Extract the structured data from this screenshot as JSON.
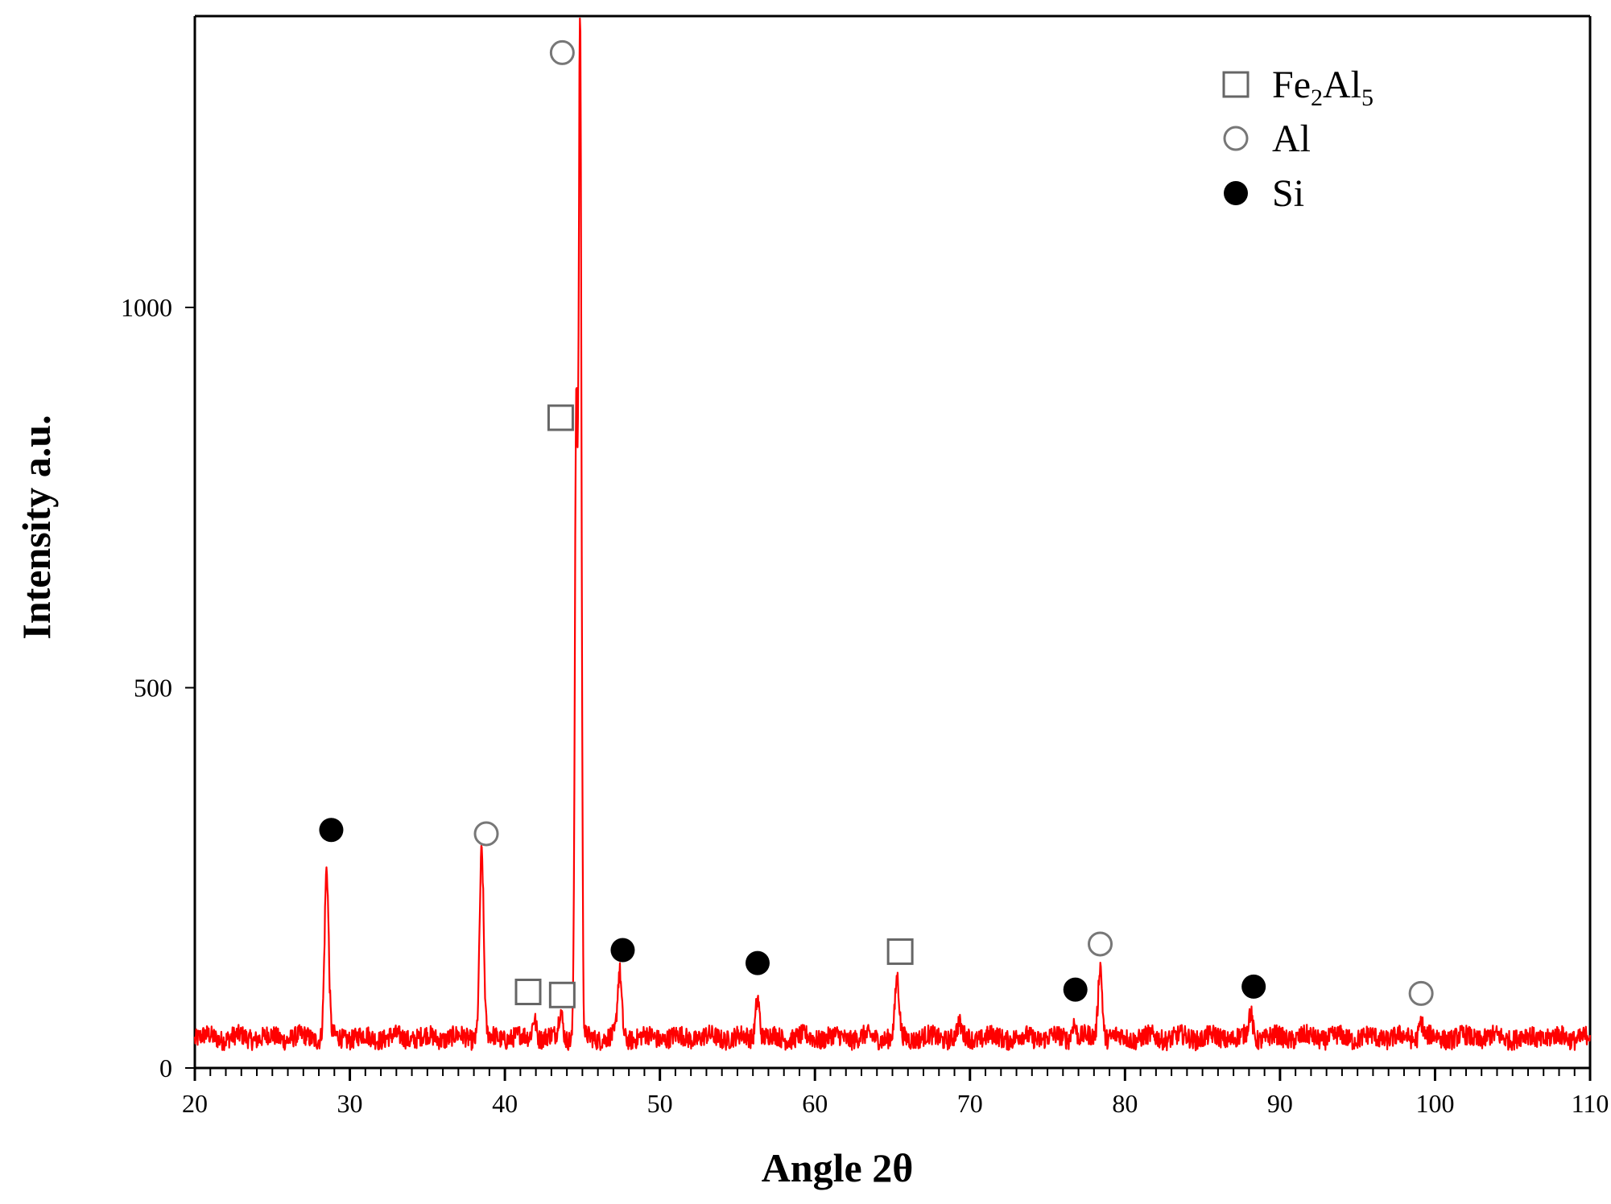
{
  "chart_data": {
    "type": "line",
    "title": "",
    "xlabel": "Angle 2θ",
    "ylabel": "Intensity a.u.",
    "xlim": [
      20,
      110
    ],
    "ylim": [
      0,
      1380
    ],
    "x_ticks": [
      20,
      30,
      40,
      50,
      60,
      70,
      80,
      90,
      100,
      110
    ],
    "y_ticks": [
      0,
      500,
      1000
    ],
    "grid": false,
    "legend_position": "top-right",
    "legend": [
      {
        "marker": "open-square",
        "label": "Fe",
        "sub1": "2",
        "label2": "Al",
        "sub2": "5"
      },
      {
        "marker": "open-circle",
        "label": "Al"
      },
      {
        "marker": "filled-circle",
        "label": "Si"
      }
    ],
    "line_color": "#ff0000",
    "series": [
      {
        "baseline": 40,
        "peaks": [
          {
            "x": 28.5,
            "y": 260
          },
          {
            "x": 38.5,
            "y": 285
          },
          {
            "x": 41.9,
            "y": 68
          },
          {
            "x": 43.6,
            "y": 75
          },
          {
            "x": 44.6,
            "y": 860
          },
          {
            "x": 44.85,
            "y": 1380
          },
          {
            "x": 47.4,
            "y": 125
          },
          {
            "x": 56.3,
            "y": 95
          },
          {
            "x": 65.3,
            "y": 115
          },
          {
            "x": 69.3,
            "y": 55
          },
          {
            "x": 76.7,
            "y": 62
          },
          {
            "x": 78.4,
            "y": 138
          },
          {
            "x": 88.1,
            "y": 72
          },
          {
            "x": 99.1,
            "y": 63
          }
        ]
      }
    ],
    "phase_markers": [
      {
        "phase": "Si",
        "marker": "filled-circle",
        "x": 28.8,
        "y": 313
      },
      {
        "phase": "Al",
        "marker": "open-circle",
        "x": 38.8,
        "y": 308
      },
      {
        "phase": "Fe2Al5",
        "marker": "open-square",
        "x": 41.5,
        "y": 100
      },
      {
        "phase": "Fe2Al5",
        "marker": "open-square",
        "x": 43.7,
        "y": 96
      },
      {
        "phase": "Fe2Al5",
        "marker": "open-square",
        "x": 43.6,
        "y": 855
      },
      {
        "phase": "Al",
        "marker": "open-circle",
        "x": 43.7,
        "y": 1335
      },
      {
        "phase": "Si",
        "marker": "filled-circle",
        "x": 47.6,
        "y": 155
      },
      {
        "phase": "Si",
        "marker": "filled-circle",
        "x": 56.3,
        "y": 138
      },
      {
        "phase": "Fe2Al5",
        "marker": "open-square",
        "x": 65.5,
        "y": 153
      },
      {
        "phase": "Si",
        "marker": "filled-circle",
        "x": 76.8,
        "y": 103
      },
      {
        "phase": "Al",
        "marker": "open-circle",
        "x": 78.4,
        "y": 163
      },
      {
        "phase": "Si",
        "marker": "filled-circle",
        "x": 88.3,
        "y": 107
      },
      {
        "phase": "Al",
        "marker": "open-circle",
        "x": 99.1,
        "y": 98
      }
    ]
  }
}
